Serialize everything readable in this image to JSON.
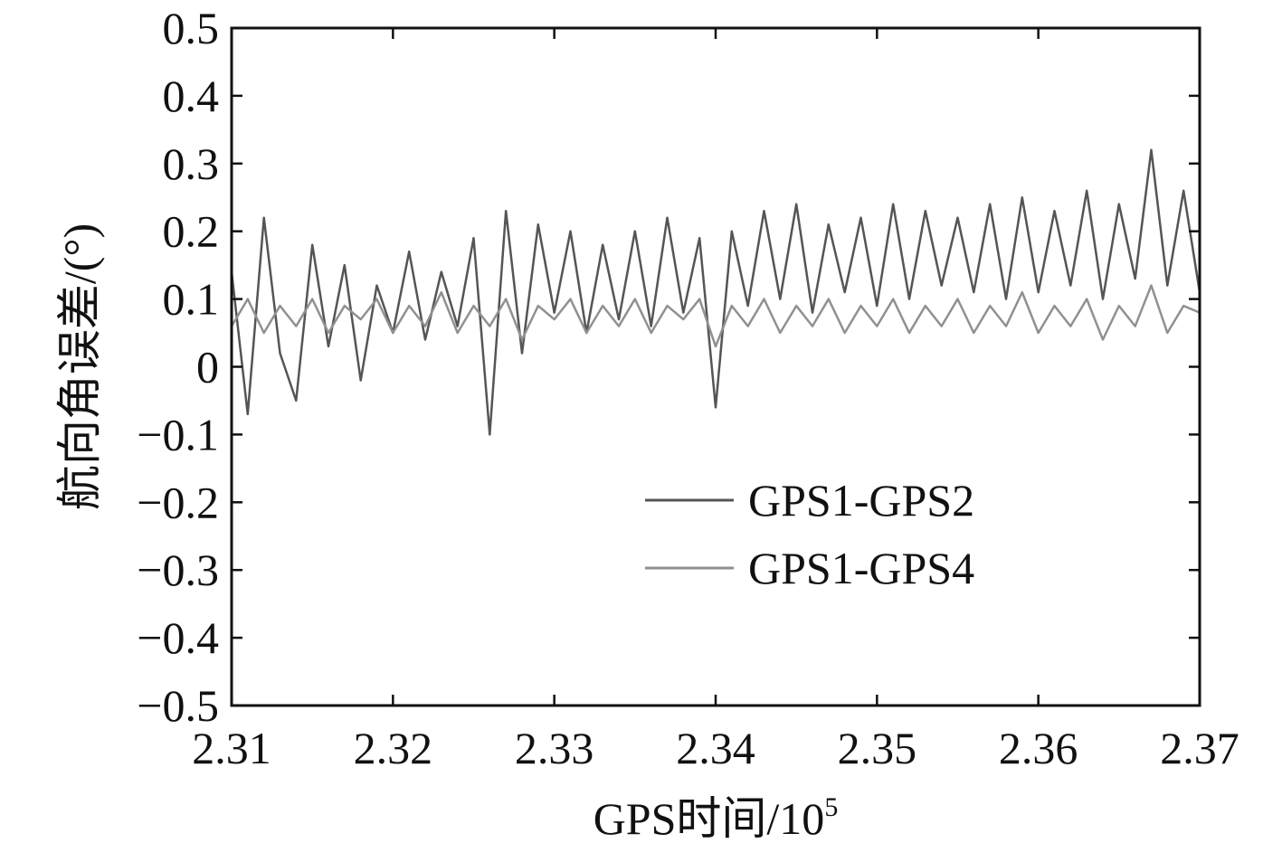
{
  "chart_data": {
    "type": "line",
    "xlabel": "GPS时间/10",
    "xlabel_sup": "5",
    "ylabel": "航向角误差/(°)",
    "xlim": [
      2.31,
      2.37
    ],
    "ylim": [
      -0.5,
      0.5
    ],
    "xticks": [
      2.31,
      2.32,
      2.33,
      2.34,
      2.35,
      2.36,
      2.37
    ],
    "xtick_labels": [
      "2.31",
      "2.32",
      "2.33",
      "2.34",
      "2.35",
      "2.36",
      "2.37"
    ],
    "yticks": [
      0.5,
      0.4,
      0.3,
      0.2,
      0.1,
      0,
      -0.1,
      -0.2,
      -0.3,
      -0.4,
      -0.5
    ],
    "ytick_labels": [
      "0.5",
      "0.4",
      "0.3",
      "0.2",
      "0.1",
      "0",
      "−0.1",
      "−0.2",
      "−0.3",
      "−0.4",
      "−0.5"
    ],
    "grid": false,
    "legend_position": "lower-right",
    "series": [
      {
        "name": "GPS1-GPS2",
        "color": "#555555",
        "x": [
          2.31,
          2.311,
          2.312,
          2.313,
          2.314,
          2.315,
          2.316,
          2.317,
          2.318,
          2.319,
          2.32,
          2.321,
          2.322,
          2.323,
          2.324,
          2.325,
          2.326,
          2.327,
          2.328,
          2.329,
          2.33,
          2.331,
          2.332,
          2.333,
          2.334,
          2.335,
          2.336,
          2.337,
          2.338,
          2.339,
          2.34,
          2.341,
          2.342,
          2.343,
          2.344,
          2.345,
          2.346,
          2.347,
          2.348,
          2.349,
          2.35,
          2.351,
          2.352,
          2.353,
          2.354,
          2.355,
          2.356,
          2.357,
          2.358,
          2.359,
          2.36,
          2.361,
          2.362,
          2.363,
          2.364,
          2.365,
          2.366,
          2.367,
          2.368,
          2.369,
          2.37
        ],
        "y": [
          0.14,
          -0.07,
          0.22,
          0.02,
          -0.05,
          0.18,
          0.03,
          0.15,
          -0.02,
          0.12,
          0.05,
          0.17,
          0.04,
          0.14,
          0.06,
          0.19,
          -0.1,
          0.23,
          0.02,
          0.21,
          0.08,
          0.2,
          0.05,
          0.18,
          0.07,
          0.2,
          0.06,
          0.22,
          0.08,
          0.19,
          -0.06,
          0.2,
          0.09,
          0.23,
          0.1,
          0.24,
          0.08,
          0.21,
          0.11,
          0.22,
          0.09,
          0.24,
          0.1,
          0.23,
          0.12,
          0.22,
          0.11,
          0.24,
          0.1,
          0.25,
          0.11,
          0.23,
          0.12,
          0.26,
          0.1,
          0.24,
          0.13,
          0.32,
          0.12,
          0.26,
          0.11
        ]
      },
      {
        "name": "GPS1-GPS4",
        "color": "#909090",
        "x": [
          2.31,
          2.311,
          2.312,
          2.313,
          2.314,
          2.315,
          2.316,
          2.317,
          2.318,
          2.319,
          2.32,
          2.321,
          2.322,
          2.323,
          2.324,
          2.325,
          2.326,
          2.327,
          2.328,
          2.329,
          2.33,
          2.331,
          2.332,
          2.333,
          2.334,
          2.335,
          2.336,
          2.337,
          2.338,
          2.339,
          2.34,
          2.341,
          2.342,
          2.343,
          2.344,
          2.345,
          2.346,
          2.347,
          2.348,
          2.349,
          2.35,
          2.351,
          2.352,
          2.353,
          2.354,
          2.355,
          2.356,
          2.357,
          2.358,
          2.359,
          2.36,
          2.361,
          2.362,
          2.363,
          2.364,
          2.365,
          2.366,
          2.367,
          2.368,
          2.369,
          2.37
        ],
        "y": [
          0.06,
          0.1,
          0.05,
          0.09,
          0.06,
          0.1,
          0.05,
          0.09,
          0.07,
          0.1,
          0.05,
          0.09,
          0.06,
          0.11,
          0.05,
          0.09,
          0.06,
          0.1,
          0.04,
          0.09,
          0.07,
          0.1,
          0.05,
          0.09,
          0.06,
          0.1,
          0.05,
          0.09,
          0.07,
          0.1,
          0.03,
          0.09,
          0.06,
          0.1,
          0.05,
          0.09,
          0.06,
          0.1,
          0.05,
          0.09,
          0.06,
          0.1,
          0.05,
          0.09,
          0.06,
          0.1,
          0.05,
          0.09,
          0.06,
          0.11,
          0.05,
          0.09,
          0.06,
          0.1,
          0.04,
          0.09,
          0.06,
          0.12,
          0.05,
          0.09,
          0.08
        ]
      }
    ]
  }
}
